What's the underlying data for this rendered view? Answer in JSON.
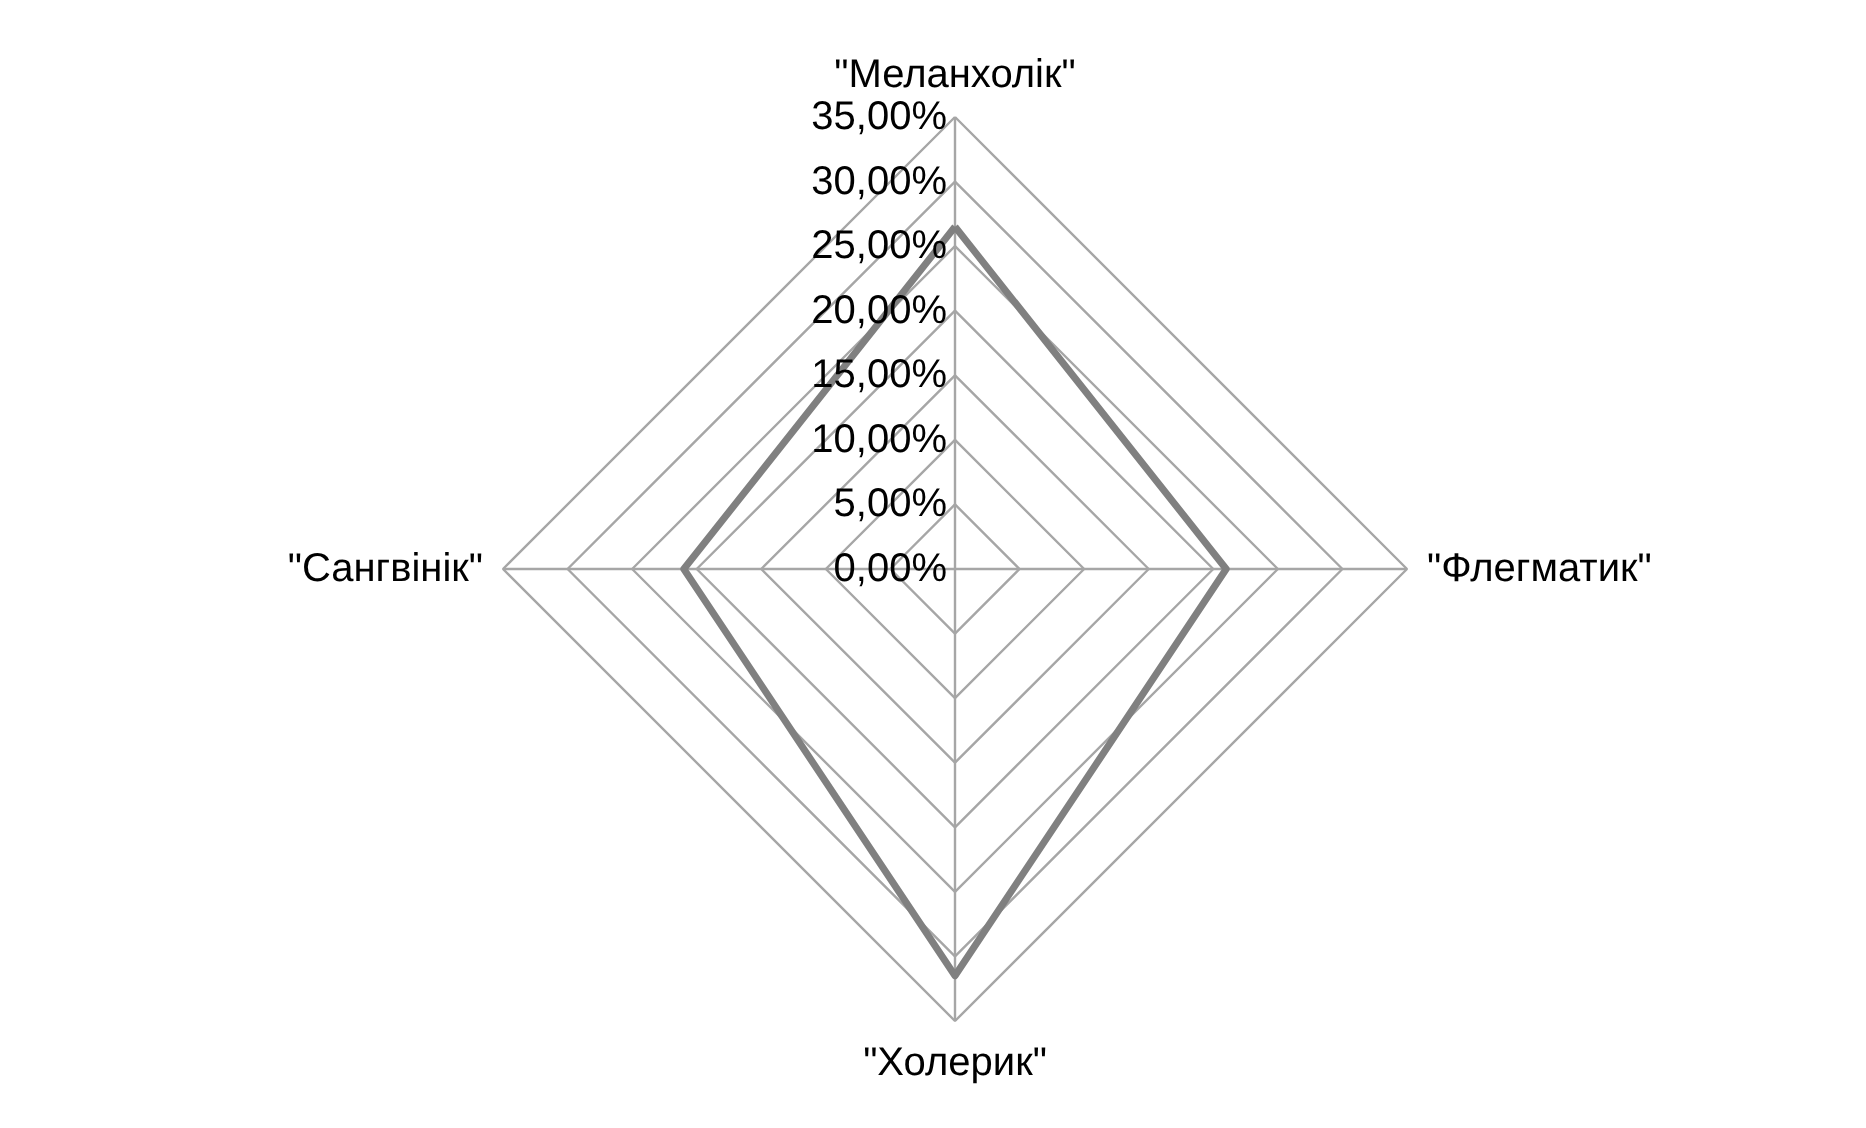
{
  "chart_data": {
    "type": "radar",
    "categories": [
      "\"Меланхолік\"",
      "\"Флегматик\"",
      "\"Холерик\"",
      "\"Сангвінік\""
    ],
    "series": [
      {
        "color": "#808080",
        "values": [
          26.5,
          21,
          31.5,
          21
        ]
      }
    ],
    "ylim": [
      0,
      35
    ],
    "yticks": [
      {
        "value": 0,
        "label": "0,00%"
      },
      {
        "value": 5,
        "label": "5,00%"
      },
      {
        "value": 10,
        "label": "10,00%"
      },
      {
        "value": 15,
        "label": "15,00%"
      },
      {
        "value": 20,
        "label": "20,00%"
      },
      {
        "value": 25,
        "label": "25,00%"
      },
      {
        "value": 30,
        "label": "30,00%"
      },
      {
        "value": 35,
        "label": "35,00%"
      }
    ],
    "grid": true,
    "marker": "none",
    "line_style": "solid"
  }
}
